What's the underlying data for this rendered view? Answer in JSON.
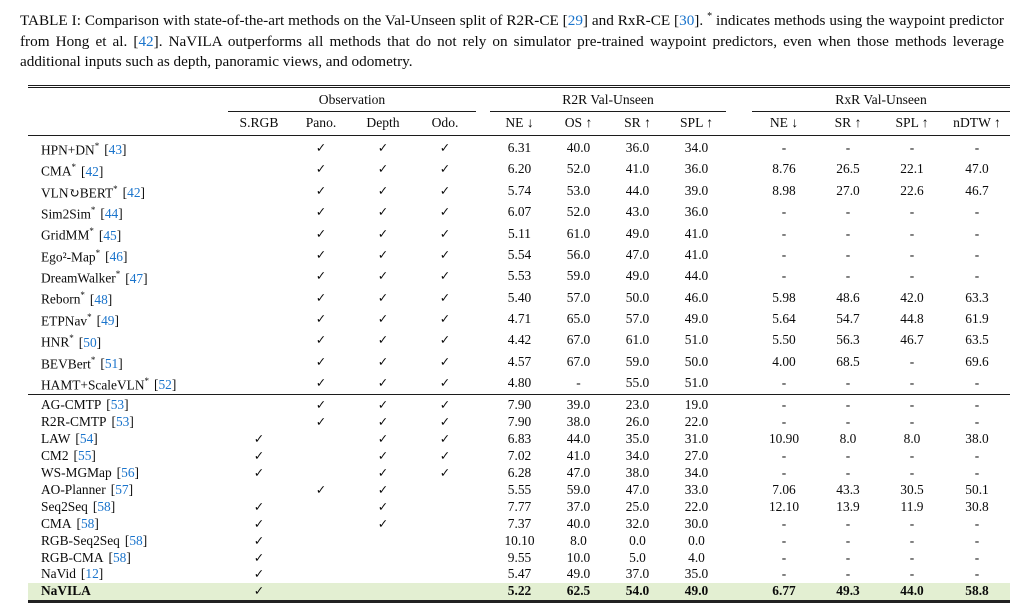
{
  "caption": {
    "segments": [
      {
        "t": "TABLE I: Comparison with state-of-the-art methods on the Val-Unseen split of R2R-CE ["
      },
      {
        "t": "29",
        "blue": true
      },
      {
        "t": "] and RxR-CE ["
      },
      {
        "t": "30",
        "blue": true
      },
      {
        "t": "]. "
      },
      {
        "t": "*",
        "sup": true
      },
      {
        "t": " indicates methods using the waypoint predictor from Hong et al. ["
      },
      {
        "t": "42",
        "blue": true
      },
      {
        "t": "]. NaVILA outperforms all methods that do not rely on simulator pre-trained waypoint predictors, even when those methods leverage additional inputs such as depth, panoramic views, and odometry."
      }
    ]
  },
  "table": {
    "group_headers": [
      {
        "label": "Observation"
      },
      {
        "label": "R2R Val-Unseen"
      },
      {
        "label": "RxR Val-Unseen"
      }
    ],
    "subheaders": [
      "S.RGB",
      "Pano.",
      "Depth",
      "Odo.",
      "NE ↓",
      "OS ↑",
      "SR ↑",
      "SPL ↑",
      "NE ↓",
      "SR ↑",
      "SPL ↑",
      "nDTW ↑"
    ],
    "check_glyph": "✓",
    "bracket_open": "[",
    "bracket_close": "]",
    "colors": {
      "highlight": "#e3efd2",
      "citation": "#1a74cc"
    },
    "groups": [
      {
        "rows": [
          {
            "method": "HPN+DN",
            "star": "*",
            "ref": "43",
            "obs": [
              0,
              1,
              1,
              1
            ],
            "vals": [
              "6.31",
              "40.0",
              "36.0",
              "34.0",
              "-",
              "-",
              "-",
              "-"
            ]
          },
          {
            "method": "CMA",
            "star": "*",
            "ref": "42",
            "obs": [
              0,
              1,
              1,
              1
            ],
            "vals": [
              "6.20",
              "52.0",
              "41.0",
              "36.0",
              "8.76",
              "26.5",
              "22.1",
              "47.0"
            ]
          },
          {
            "method": "VLN↻BERT",
            "star": "*",
            "ref": "42",
            "obs": [
              0,
              1,
              1,
              1
            ],
            "vals": [
              "5.74",
              "53.0",
              "44.0",
              "39.0",
              "8.98",
              "27.0",
              "22.6",
              "46.7"
            ]
          },
          {
            "method": "Sim2Sim",
            "star": "*",
            "ref": "44",
            "obs": [
              0,
              1,
              1,
              1
            ],
            "vals": [
              "6.07",
              "52.0",
              "43.0",
              "36.0",
              "-",
              "-",
              "-",
              "-"
            ]
          },
          {
            "method": "GridMM",
            "star": "*",
            "ref": "45",
            "obs": [
              0,
              1,
              1,
              1
            ],
            "vals": [
              "5.11",
              "61.0",
              "49.0",
              "41.0",
              "-",
              "-",
              "-",
              "-"
            ]
          },
          {
            "method": "Ego²-Map",
            "star": "*",
            "ref": "46",
            "obs": [
              0,
              1,
              1,
              1
            ],
            "vals": [
              "5.54",
              "56.0",
              "47.0",
              "41.0",
              "-",
              "-",
              "-",
              "-"
            ]
          },
          {
            "method": "DreamWalker",
            "star": "*",
            "ref": "47",
            "obs": [
              0,
              1,
              1,
              1
            ],
            "vals": [
              "5.53",
              "59.0",
              "49.0",
              "44.0",
              "-",
              "-",
              "-",
              "-"
            ]
          },
          {
            "method": "Reborn",
            "star": "*",
            "ref": "48",
            "obs": [
              0,
              1,
              1,
              1
            ],
            "vals": [
              "5.40",
              "57.0",
              "50.0",
              "46.0",
              "5.98",
              "48.6",
              "42.0",
              "63.3"
            ]
          },
          {
            "method": "ETPNav",
            "star": "*",
            "ref": "49",
            "obs": [
              0,
              1,
              1,
              1
            ],
            "vals": [
              "4.71",
              "65.0",
              "57.0",
              "49.0",
              "5.64",
              "54.7",
              "44.8",
              "61.9"
            ]
          },
          {
            "method": "HNR",
            "star": "*",
            "ref": "50",
            "obs": [
              0,
              1,
              1,
              1
            ],
            "vals": [
              "4.42",
              "67.0",
              "61.0",
              "51.0",
              "5.50",
              "56.3",
              "46.7",
              "63.5"
            ]
          },
          {
            "method": "BEVBert",
            "star": "*",
            "ref": "51",
            "obs": [
              0,
              1,
              1,
              1
            ],
            "vals": [
              "4.57",
              "67.0",
              "59.0",
              "50.0",
              "4.00",
              "68.5",
              "-",
              "69.6"
            ]
          },
          {
            "method": "HAMT+ScaleVLN",
            "star": "*",
            "ref": "52",
            "obs": [
              0,
              1,
              1,
              1
            ],
            "vals": [
              "4.80",
              "-",
              "55.0",
              "51.0",
              "-",
              "-",
              "-",
              "-"
            ]
          }
        ]
      },
      {
        "rows": [
          {
            "method": "AG-CMTP",
            "star": "",
            "ref": "53",
            "obs": [
              0,
              1,
              1,
              1
            ],
            "vals": [
              "7.90",
              "39.0",
              "23.0",
              "19.0",
              "-",
              "-",
              "-",
              "-"
            ]
          },
          {
            "method": "R2R-CMTP",
            "star": "",
            "ref": "53",
            "obs": [
              0,
              1,
              1,
              1
            ],
            "vals": [
              "7.90",
              "38.0",
              "26.0",
              "22.0",
              "-",
              "-",
              "-",
              "-"
            ]
          },
          {
            "method": "LAW",
            "star": "",
            "ref": "54",
            "obs": [
              1,
              0,
              1,
              1
            ],
            "vals": [
              "6.83",
              "44.0",
              "35.0",
              "31.0",
              "10.90",
              "8.0",
              "8.0",
              "38.0"
            ]
          },
          {
            "method": "CM2",
            "star": "",
            "ref": "55",
            "obs": [
              1,
              0,
              1,
              1
            ],
            "vals": [
              "7.02",
              "41.0",
              "34.0",
              "27.0",
              "-",
              "-",
              "-",
              "-"
            ]
          },
          {
            "method": "WS-MGMap",
            "star": "",
            "ref": "56",
            "obs": [
              1,
              0,
              1,
              1
            ],
            "vals": [
              "6.28",
              "47.0",
              "38.0",
              "34.0",
              "-",
              "-",
              "-",
              "-"
            ]
          },
          {
            "method": "AO-Planner",
            "star": "",
            "ref": "57",
            "obs": [
              0,
              1,
              1,
              0
            ],
            "vals": [
              "5.55",
              "59.0",
              "47.0",
              "33.0",
              "7.06",
              "43.3",
              "30.5",
              "50.1"
            ]
          },
          {
            "method": "Seq2Seq",
            "star": "",
            "ref": "58",
            "obs": [
              1,
              0,
              1,
              0
            ],
            "vals": [
              "7.77",
              "37.0",
              "25.0",
              "22.0",
              "12.10",
              "13.9",
              "11.9",
              "30.8"
            ]
          },
          {
            "method": "CMA",
            "star": "",
            "ref": "58",
            "obs": [
              1,
              0,
              1,
              0
            ],
            "vals": [
              "7.37",
              "40.0",
              "32.0",
              "30.0",
              "-",
              "-",
              "-",
              "-"
            ]
          },
          {
            "method": "RGB-Seq2Seq",
            "star": "",
            "ref": "58",
            "obs": [
              1,
              0,
              0,
              0
            ],
            "vals": [
              "10.10",
              "8.0",
              "0.0",
              "0.0",
              "-",
              "-",
              "-",
              "-"
            ]
          },
          {
            "method": "RGB-CMA",
            "star": "",
            "ref": "58",
            "obs": [
              1,
              0,
              0,
              0
            ],
            "vals": [
              "9.55",
              "10.0",
              "5.0",
              "4.0",
              "-",
              "-",
              "-",
              "-"
            ]
          },
          {
            "method": "NaVid",
            "star": "",
            "ref": "12",
            "obs": [
              1,
              0,
              0,
              0
            ],
            "vals": [
              "5.47",
              "49.0",
              "37.0",
              "35.0",
              "-",
              "-",
              "-",
              "-"
            ]
          },
          {
            "method": "NaVILA",
            "star": "",
            "ref": "",
            "obs": [
              1,
              0,
              0,
              0
            ],
            "vals": [
              "5.22",
              "62.5",
              "54.0",
              "49.0",
              "6.77",
              "49.3",
              "44.0",
              "58.8"
            ],
            "highlight": true,
            "bold": true
          }
        ]
      }
    ]
  }
}
